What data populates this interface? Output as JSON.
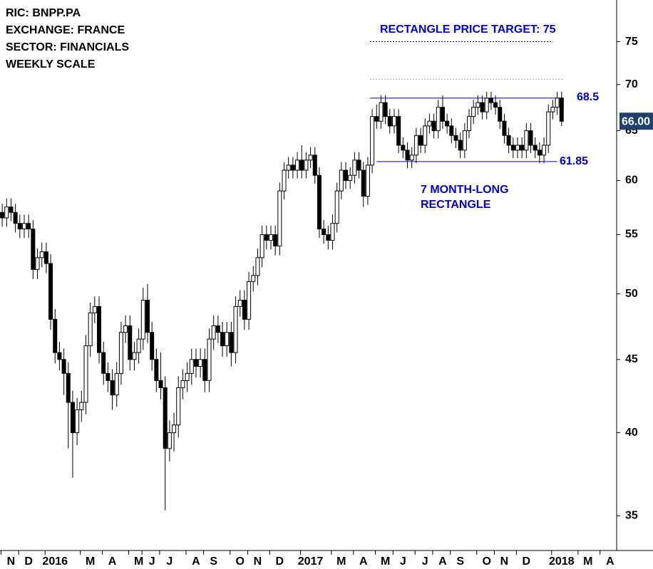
{
  "chart_data": {
    "type": "candlestick",
    "info_lines": [
      "RIC: BNPP.PA",
      "EXCHANGE: FRANCE",
      "SECTOR: FINANCIALS",
      "WEEKLY SCALE"
    ],
    "annotations": [
      "RECTANGLE PRICE TARGET: 75",
      "7 MONTH-LONG",
      "RECTANGLE"
    ],
    "categories": [
      null,
      null,
      "N",
      null,
      null,
      null,
      "D",
      null,
      null,
      null,
      null,
      null,
      "2016",
      null,
      null,
      null,
      null,
      null,
      null,
      null,
      "M",
      null,
      null,
      null,
      null,
      "A",
      null,
      null,
      null,
      null,
      null,
      "M",
      null,
      null,
      "J",
      null,
      null,
      null,
      "J",
      null,
      null,
      null,
      null,
      null,
      "A",
      null,
      null,
      null,
      "S",
      null,
      null,
      null,
      null,
      null,
      "O",
      null,
      null,
      null,
      "N",
      null,
      null,
      null,
      null,
      "D",
      null,
      null,
      null,
      null,
      null,
      null,
      "2017",
      null,
      null,
      null,
      null,
      null,
      null,
      "M",
      null,
      null,
      null,
      null,
      "A",
      null,
      null,
      null,
      null,
      "M",
      null,
      null,
      null,
      "J",
      null,
      null,
      null,
      null,
      "J",
      null,
      null,
      null,
      "A",
      null,
      null,
      null,
      "S",
      null,
      null,
      null,
      null,
      null,
      "O",
      null,
      null,
      null,
      "N",
      null,
      null,
      null,
      null,
      "D",
      null,
      null,
      null,
      null,
      null,
      null,
      null,
      "2018",
      null,
      null,
      null,
      null,
      null,
      "M",
      null,
      null,
      null,
      null,
      "A",
      null
    ],
    "open": [
      57,
      56.5,
      57.5,
      57,
      56,
      55.5,
      56,
      55.5,
      52,
      53,
      53.5,
      52.5,
      48,
      45.5,
      45,
      44,
      42,
      40,
      41.5,
      42,
      46,
      48.5,
      49,
      45.5,
      44,
      43.5,
      42.5,
      44,
      47,
      47.5,
      45,
      45.5,
      46.5,
      49.5,
      47,
      45,
      43.5,
      43,
      39,
      40,
      40.5,
      43,
      43.5,
      44,
      45,
      44.5,
      45,
      43.5,
      46.5,
      47.5,
      47,
      46,
      47,
      45.5,
      49,
      49.5,
      48,
      51,
      51.5,
      53,
      55,
      54.5,
      55,
      54,
      59,
      61,
      61.5,
      61,
      62,
      61,
      62,
      62.5,
      60.5,
      55.5,
      55,
      54.5,
      56,
      59,
      61,
      60,
      60.5,
      62,
      61,
      58.5,
      61.5,
      66.5,
      66,
      68,
      66.5,
      65.5,
      66.5,
      63.5,
      63,
      62,
      62.5,
      64.5,
      63.5,
      65.5,
      66,
      65,
      67.5,
      66,
      65.5,
      64.5,
      64,
      63,
      65,
      66.5,
      67.5,
      68,
      67,
      68.5,
      68,
      67.5,
      66,
      64.5,
      63.5,
      63,
      63.5,
      63,
      65,
      63.5,
      63,
      62.5,
      63.5,
      67,
      67.5,
      68.5,
      null,
      null,
      null,
      null,
      null,
      null,
      null,
      null,
      null,
      null,
      null,
      null
    ],
    "high": [
      57.8,
      58.3,
      58.3,
      57.8,
      56.8,
      56.8,
      56.8,
      56.3,
      53.8,
      54.3,
      54.3,
      53.3,
      48.8,
      46.3,
      45.8,
      44.8,
      42.8,
      42.3,
      42.8,
      46.8,
      49.3,
      49.8,
      49.8,
      46.3,
      44.8,
      44.3,
      44.8,
      47.8,
      48.3,
      48.3,
      46.3,
      47.3,
      50.5,
      50.8,
      47.8,
      45.8,
      45.5,
      43.8,
      40.8,
      41.3,
      43.8,
      44.3,
      44.8,
      45.8,
      45.8,
      45.8,
      45.8,
      47.3,
      48.3,
      48.3,
      47.8,
      47.8,
      47.8,
      49.8,
      50.3,
      50.3,
      51.8,
      52.3,
      53.8,
      55.8,
      55.8,
      55.8,
      55.8,
      59.8,
      61.8,
      62.3,
      62.3,
      62.8,
      63.5,
      62.8,
      63.3,
      63.3,
      61.3,
      56.3,
      55.8,
      56.8,
      59.8,
      61.8,
      61.8,
      61.3,
      62.8,
      62.8,
      61.8,
      62.3,
      67.3,
      67.8,
      68.8,
      68.8,
      67.3,
      67.3,
      67.3,
      64.3,
      63.8,
      63.3,
      65.3,
      65.3,
      66.3,
      66.8,
      66.8,
      68.3,
      68.8,
      66.8,
      66.3,
      65.3,
      64.8,
      65.8,
      67.3,
      68.3,
      68.8,
      68.8,
      69.2,
      69.2,
      68.8,
      68.3,
      66.8,
      65.3,
      64.3,
      64.3,
      64.3,
      65.8,
      65.8,
      64.3,
      63.8,
      64.3,
      67.8,
      68.3,
      69.2,
      69.2,
      null,
      null,
      null,
      null,
      null,
      null,
      null,
      null,
      null,
      null,
      null,
      null
    ],
    "low": [
      55.7,
      55.7,
      56.2,
      55.2,
      54.7,
      54.7,
      54.7,
      51.2,
      51.2,
      52.2,
      51.7,
      47.2,
      44.7,
      44.2,
      42.5,
      39,
      37.2,
      39.2,
      40.7,
      41.2,
      45.2,
      47.7,
      44.7,
      43.2,
      42.7,
      41.5,
      41.7,
      43.2,
      46.2,
      44.2,
      44.2,
      44.7,
      45.7,
      46.2,
      44.2,
      42.7,
      42.2,
      35.3,
      38.2,
      38.8,
      39.7,
      42.2,
      42.7,
      43.2,
      43.7,
      43.7,
      42.7,
      42.7,
      45.7,
      46.2,
      45.2,
      45.2,
      44.5,
      44.7,
      48.2,
      47.2,
      47.2,
      50.2,
      50.7,
      52.2,
      53.7,
      53.7,
      53.2,
      53.2,
      58.2,
      60.2,
      60.2,
      60.2,
      60.2,
      60.2,
      61.2,
      59.7,
      54.7,
      54.2,
      53.7,
      53.7,
      55.2,
      58.2,
      59.2,
      59.2,
      59.7,
      60.2,
      57.5,
      57.7,
      60.7,
      65.2,
      65.2,
      65.7,
      64.7,
      64.7,
      62.7,
      62.2,
      61.2,
      61.2,
      61.7,
      62.7,
      62.7,
      64.7,
      64.2,
      64.2,
      65.2,
      64.7,
      63.7,
      63.2,
      62.2,
      62.2,
      64.2,
      65.7,
      66.7,
      66.2,
      66.2,
      67.2,
      66.7,
      65.2,
      63.7,
      62.7,
      62.2,
      62.2,
      62.2,
      62.2,
      62.7,
      62.2,
      61.7,
      61.7,
      62.7,
      66.2,
      66.7,
      65.5,
      null,
      null,
      null,
      null,
      null,
      null,
      null,
      null,
      null,
      null,
      null,
      null
    ],
    "close": [
      56.5,
      57.5,
      57,
      56,
      55.5,
      56,
      55.5,
      52,
      53,
      53.5,
      52.5,
      48,
      45.5,
      45,
      44,
      42,
      40,
      41.5,
      42,
      46,
      48.5,
      49,
      45.5,
      44,
      43.5,
      42.5,
      44,
      47,
      47.5,
      45,
      45.5,
      46.5,
      49.5,
      47,
      45,
      43.5,
      43,
      39,
      40,
      40.5,
      43,
      43.5,
      44,
      45,
      44.5,
      45,
      43.5,
      46.5,
      47.5,
      47,
      46,
      47,
      45.5,
      49,
      49.5,
      48,
      51,
      51.5,
      53,
      55,
      54.5,
      55,
      54,
      59,
      61,
      61.5,
      61,
      62,
      61,
      62,
      62.5,
      60.5,
      55.5,
      55,
      54.5,
      56,
      59,
      61,
      60,
      60.5,
      62,
      61,
      58.5,
      61.5,
      66.5,
      66,
      68,
      66.5,
      65.5,
      66.5,
      63.5,
      63,
      62,
      62.5,
      64.5,
      63.5,
      65.5,
      66,
      65,
      67.5,
      66,
      65.5,
      64.5,
      64,
      63,
      65,
      66.5,
      67.5,
      68,
      67,
      68.5,
      68,
      67.5,
      66,
      64.5,
      63.5,
      63,
      63.5,
      63,
      65,
      63.5,
      63,
      62.5,
      63.5,
      67,
      67.5,
      68.5,
      66,
      null,
      null,
      null,
      null,
      null,
      null,
      null,
      null,
      null,
      null,
      null,
      null
    ],
    "ylim": [
      33.1,
      80.2
    ],
    "yticks": [
      35,
      40,
      45,
      50,
      55,
      60,
      65,
      70,
      75
    ],
    "log_scale": true,
    "resistance": 68.5,
    "support": 61.85,
    "target": 75,
    "reference": 70.6,
    "last_price": {
      "value": 66,
      "label": "66.00"
    },
    "line_color": "#0000cc",
    "label_color": "#1f3f6e"
  }
}
